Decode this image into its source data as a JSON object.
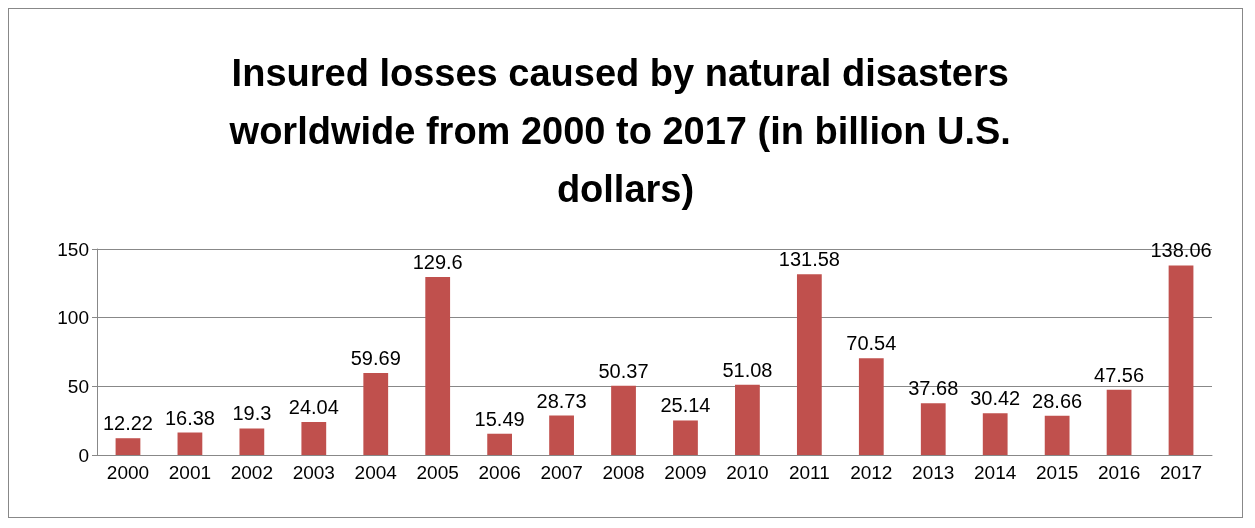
{
  "chart_data": {
    "type": "bar",
    "title": "Insured losses caused by natural disasters worldwide from 2000 to 2017 (in billion U.S. dollars)",
    "categories": [
      "2000",
      "2001",
      "2002",
      "2003",
      "2004",
      "2005",
      "2006",
      "2007",
      "2008",
      "2009",
      "2010",
      "2011",
      "2012",
      "2013",
      "2014",
      "2015",
      "2016",
      "2017"
    ],
    "values": [
      12.22,
      16.38,
      19.3,
      24.04,
      59.69,
      129.6,
      15.49,
      28.73,
      50.37,
      25.14,
      51.08,
      131.58,
      70.54,
      37.68,
      30.42,
      28.66,
      47.56,
      138.06
    ],
    "color": "#c0504d",
    "ylim": [
      0,
      150
    ],
    "yticks": [
      0,
      50,
      100,
      150
    ],
    "grid": true,
    "data_labels": true
  }
}
